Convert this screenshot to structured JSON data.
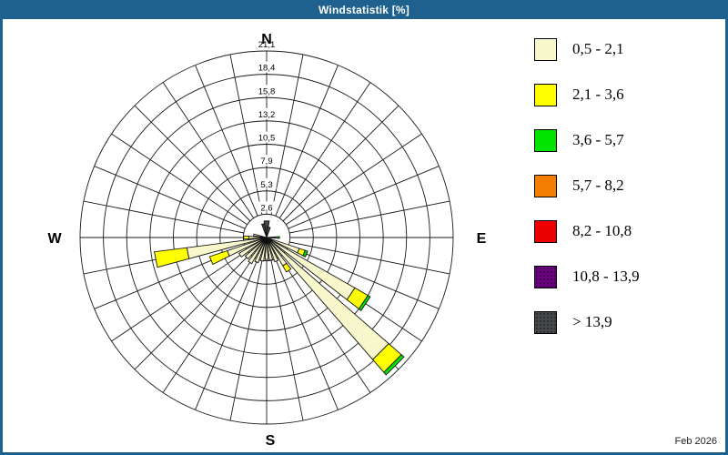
{
  "window": {
    "title": "Windstatistik [%]"
  },
  "theme": {
    "frame_color": "#1F618E",
    "panel_color": "#FFFFFF",
    "grid_color": "#1A1A1A",
    "text_color": "#000000"
  },
  "compass": {
    "north": "N",
    "east": "E",
    "south": "S",
    "west": "W"
  },
  "footer": {
    "date_label": "Feb 2026"
  },
  "chart_data": {
    "type": "bar",
    "variant": "wind-rose-polar",
    "title": "Windstatistik [%]",
    "units": "%",
    "radial_axis": {
      "ticks": [
        "2,6",
        "5,3",
        "7,9",
        "10,5",
        "13,2",
        "15,8",
        "18,4",
        "21,1"
      ],
      "tick_values": [
        2.6,
        5.3,
        7.9,
        10.5,
        13.2,
        15.8,
        18.4,
        21.1
      ],
      "max": 21.1
    },
    "grid": {
      "rings": 8,
      "spokes": 32,
      "sector_deg": 11.25
    },
    "speed_classes": [
      {
        "label": "0,5 - 2,1",
        "color": "#F8F6CB",
        "textured": false
      },
      {
        "label": "2,1 - 3,6",
        "color": "#FFFF00",
        "textured": false
      },
      {
        "label": "3,6 - 5,7",
        "color": "#00E400",
        "textured": false
      },
      {
        "label": "5,7 - 8,2",
        "color": "#F57E00",
        "textured": false
      },
      {
        "label": "8,2 - 10,8",
        "color": "#EE0000",
        "textured": false
      },
      {
        "label": "10,8 - 13,9",
        "color": "#6A0080",
        "textured": true
      },
      {
        "label": "> 13,9",
        "color": "#43484C",
        "textured": true
      }
    ],
    "petals": [
      {
        "dir_deg": 90.0,
        "half_deg": 4,
        "segments": [
          [
            0,
            0.9
          ],
          [
            2,
            0.55
          ]
        ]
      },
      {
        "dir_deg": 112.5,
        "half_deg": 4,
        "segments": [
          [
            0,
            3.9
          ],
          [
            1,
            0.7
          ],
          [
            2,
            0.3
          ]
        ]
      },
      {
        "dir_deg": 123.75,
        "half_deg": 4,
        "segments": [
          [
            0,
            11.5
          ],
          [
            1,
            1.7
          ],
          [
            2,
            0.3
          ]
        ]
      },
      {
        "dir_deg": 135.0,
        "half_deg": 4,
        "segments": [
          [
            0,
            18.3
          ],
          [
            1,
            1.9
          ],
          [
            2,
            0.4
          ]
        ]
      },
      {
        "dir_deg": 146.25,
        "half_deg": 4,
        "segments": [
          [
            0,
            3.7
          ],
          [
            1,
            0.8
          ]
        ]
      },
      {
        "dir_deg": 157.5,
        "half_deg": 4,
        "segments": [
          [
            0,
            2.9
          ]
        ]
      },
      {
        "dir_deg": 168.75,
        "half_deg": 4,
        "segments": [
          [
            0,
            2.6
          ]
        ]
      },
      {
        "dir_deg": 180.0,
        "half_deg": 4,
        "segments": [
          [
            0,
            2.5
          ]
        ]
      },
      {
        "dir_deg": 191.25,
        "half_deg": 4,
        "segments": [
          [
            0,
            2.7
          ]
        ]
      },
      {
        "dir_deg": 202.5,
        "half_deg": 4,
        "segments": [
          [
            0,
            3.0
          ]
        ]
      },
      {
        "dir_deg": 213.75,
        "half_deg": 4,
        "segments": [
          [
            0,
            3.4
          ]
        ]
      },
      {
        "dir_deg": 225.0,
        "half_deg": 4,
        "segments": [
          [
            0,
            3.2
          ]
        ]
      },
      {
        "dir_deg": 236.25,
        "half_deg": 4,
        "segments": [
          [
            0,
            3.6
          ]
        ]
      },
      {
        "dir_deg": 247.5,
        "half_deg": 4,
        "segments": [
          [
            0,
            4.7
          ],
          [
            1,
            2.1
          ]
        ]
      },
      {
        "dir_deg": 258.75,
        "half_deg": 4,
        "segments": [
          [
            0,
            9.1
          ],
          [
            1,
            3.7
          ]
        ]
      },
      {
        "dir_deg": 270.0,
        "half_deg": 4,
        "segments": [
          [
            0,
            2.0
          ],
          [
            1,
            0.6
          ]
        ]
      },
      {
        "dir_deg": 281.25,
        "half_deg": 4,
        "segments": [
          [
            0,
            1.5
          ]
        ]
      },
      {
        "dir_deg": 348.75,
        "half_deg": 9,
        "segments": [
          [
            6,
            1.6
          ]
        ]
      },
      {
        "dir_deg": 0.0,
        "half_deg": 9,
        "segments": [
          [
            6,
            1.9
          ]
        ]
      },
      {
        "dir_deg": 11.25,
        "half_deg": 9,
        "segments": [
          [
            6,
            1.2
          ]
        ]
      },
      {
        "dir_deg": 356.0,
        "half_deg": 4,
        "segments": [
          [
            1,
            0.5
          ]
        ]
      }
    ],
    "legend_position": "right"
  }
}
